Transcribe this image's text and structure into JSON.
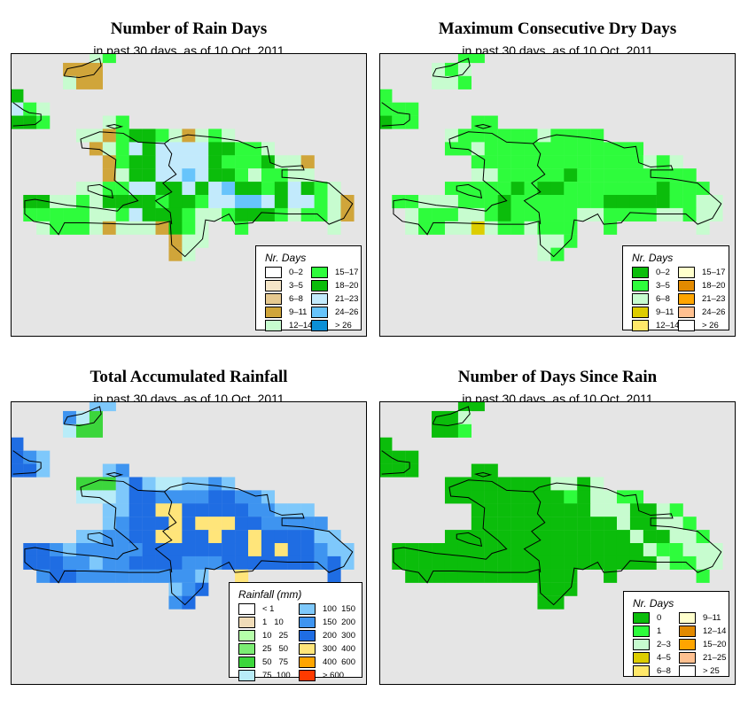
{
  "panels": [
    {
      "title": "Number of Rain Days",
      "subtitle": "in past 30 days, as of  10 Oct. 2011",
      "legend": {
        "title": "Nr. Days",
        "items": [
          {
            "label": "0–2",
            "color": "#ffffff"
          },
          {
            "label": "3–5",
            "color": "#f5e6c8"
          },
          {
            "label": "6–8",
            "color": "#e6c990"
          },
          {
            "label": "9–11",
            "color": "#d0a53a"
          },
          {
            "label": "12–14",
            "color": "#c7fccf"
          },
          {
            "label": "15–17",
            "color": "#2efc3c"
          },
          {
            "label": "18–20",
            "color": "#0bbd0b"
          },
          {
            "label": "21–23",
            "color": "#c2eafc"
          },
          {
            "label": "24–26",
            "color": "#67c4fb"
          },
          {
            "label": "> 26",
            "color": "#0b8fd6"
          }
        ]
      },
      "grid": [
        "......45...................",
        "....333....................",
        "....433....................",
        "6..........................",
        "754........................",
        "665....45..................",
        ".....443566543454..........",
        "......34576777766554.......",
        ".......3566777765556443....",
        ".......3466778766545544....",
        ".....44557766767866567654..",
        ".6644546666566577887677543.",
        ".5555544576665445666545543.",
        "..4555434443654..5......4..",
        "............344............",
        "............34............."
      ]
    },
    {
      "title": "Maximum Consecutive Dry Days",
      "subtitle": "in past 30 days, as of  10 Oct. 2011",
      "legend": {
        "title": "Nr. Days",
        "items": [
          {
            "label": "0–2",
            "color": "#0bbd0b"
          },
          {
            "label": "3–5",
            "color": "#2efc3c"
          },
          {
            "label": "6–8",
            "color": "#c7fccf"
          },
          {
            "label": "9–11",
            "color": "#ddcd00"
          },
          {
            "label": "12–14",
            "color": "#ffe86a"
          },
          {
            "label": "15–17",
            "color": "#ffffcc"
          },
          {
            "label": "18–20",
            "color": "#e28a00"
          },
          {
            "label": "21–23",
            "color": "#ffa500"
          },
          {
            "label": "24–26",
            "color": "#ffc090"
          },
          {
            "label": "> 26",
            "color": "#ffffff"
          }
        ]
      },
      "grid": [
        "......11...................",
        "....212....................",
        "....221....................",
        "1..........................",
        "111........................",
        "011....11..................",
        ".....211111121111..........",
        ".....112111111111111.......",
        ".......1111111111111212....",
        ".......22111110111111111...",
        ".....11111010011111110111..",
        ".1122211101111111000001122.",
        "..211122101111122111122122.",
        "..2112232112111..1......2..",
        "............221............",
        "............21............."
      ]
    },
    {
      "title": "Total Accumulated Rainfall",
      "subtitle": "in past 30 days, as of  10 Oct. 2011",
      "legend": {
        "title": "Rainfall (mm)",
        "items": [
          {
            "label": "< 1",
            "color": "#ffffff"
          },
          {
            "label": "1   10",
            "color": "#f0dcb8"
          },
          {
            "label": "10   25",
            "color": "#b6ffaa"
          },
          {
            "label": "25   50",
            "color": "#7ced74"
          },
          {
            "label": "50   75",
            "color": "#3cd63c"
          },
          {
            "label": "75  100",
            "color": "#b8ecf8"
          },
          {
            "label": "100  150",
            "color": "#7ec8fb"
          },
          {
            "label": "150  200",
            "color": "#3e94f0"
          },
          {
            "label": "200  300",
            "color": "#1f6de3"
          },
          {
            "label": "300  400",
            "color": "#ffe57a"
          },
          {
            "label": "400  600",
            "color": "#ffa500"
          },
          {
            "label": "> 600",
            "color": "#ff3a00"
          }
        ]
      },
      "grid": [
        "......66...................",
        "....754....................",
        "....544....................",
        "8..........................",
        "876........................",
        "886....67..................",
        ".....444686556676..........",
        ".....555688777788776.......",
        ".......6688998888877666....",
        ".......67888989998877777...",
        ".....66778899889889888866..",
        ".8876777778888888898988766.",
        ".8887767788887778888888786.",
        "..7887777777776..9......8..",
        "............678............",
        "............78............."
      ]
    },
    {
      "title": "Number of Days Since Rain",
      "subtitle": "in past 30 days, as of  10 Oct. 2011",
      "legend": {
        "title": "Nr. Days",
        "items": [
          {
            "label": "0",
            "color": "#0bbd0b"
          },
          {
            "label": "1",
            "color": "#2efc3c"
          },
          {
            "label": "2–3",
            "color": "#c7fccf"
          },
          {
            "label": "4–5",
            "color": "#ddcd00"
          },
          {
            "label": "6–8",
            "color": "#ffe86a"
          },
          {
            "label": "9–11",
            "color": "#ffffcc"
          },
          {
            "label": "12–14",
            "color": "#e28a00"
          },
          {
            "label": "15–20",
            "color": "#ffa500"
          },
          {
            "label": "21–25",
            "color": "#ffc090"
          },
          {
            "label": "> 25",
            "color": "#ffffff"
          }
        ]
      },
      "grid": [
        "......00...................",
        "....002....................",
        "....001....................",
        "0..........................",
        "000........................",
        "000....00..................",
        ".....000000002202..........",
        ".....000000000102211.......",
        ".......0000000002220021....",
        ".......00000000000200221...",
        ".....00000000000000200221..",
        ".0000000000000000000211222.",
        ".0000000000000000000021122.",
        "..0000000000000..0......1..",
        "............000............",
        "............00............."
      ]
    }
  ]
}
